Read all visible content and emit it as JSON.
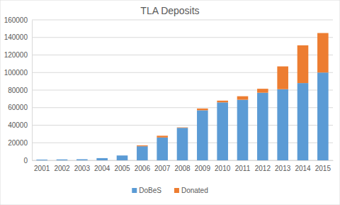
{
  "chart_data": {
    "type": "bar",
    "title": "TLA Deposits",
    "stacked": true,
    "grid": true,
    "legend": "bottom",
    "categories": [
      "2001",
      "2002",
      "2003",
      "2004",
      "2005",
      "2006",
      "2007",
      "2008",
      "2009",
      "2010",
      "2011",
      "2012",
      "2013",
      "2014",
      "2015"
    ],
    "series": [
      {
        "name": "DoBeS",
        "color": "#5b9bd5",
        "values": [
          800,
          1000,
          1200,
          2500,
          5500,
          16000,
          26000,
          37000,
          57000,
          66000,
          69000,
          77000,
          81000,
          88000,
          100000
        ]
      },
      {
        "name": "Donated",
        "color": "#ed7d31",
        "values": [
          0,
          0,
          0,
          0,
          0,
          1000,
          2000,
          500,
          2000,
          2000,
          4000,
          4500,
          26000,
          43000,
          45000
        ]
      }
    ],
    "ylim": [
      0,
      160000
    ],
    "yticks": [
      0,
      20000,
      40000,
      60000,
      80000,
      100000,
      120000,
      140000,
      160000
    ]
  }
}
